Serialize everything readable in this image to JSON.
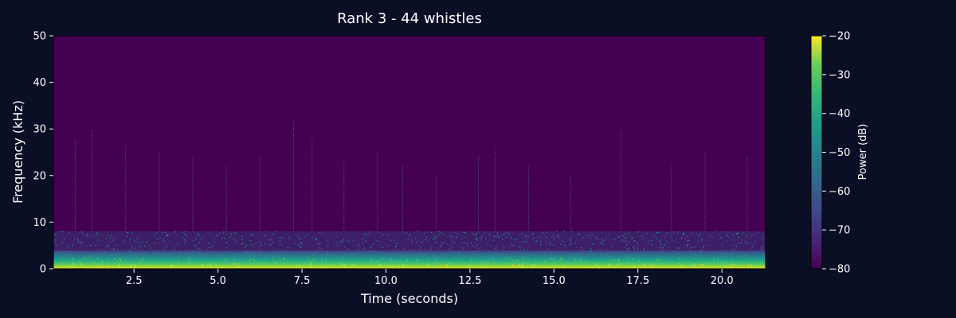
{
  "chart_data": {
    "type": "heatmap",
    "title": "Rank 3 - 44 whistles",
    "xlabel": "Time (seconds)",
    "ylabel": "Frequency (kHz)",
    "xlim": [
      0.1,
      21.3
    ],
    "ylim": [
      0,
      50
    ],
    "x_ticks": [
      2.5,
      5.0,
      7.5,
      10.0,
      12.5,
      15.0,
      17.5,
      20.0
    ],
    "x_tick_labels": [
      "2.5",
      "5.0",
      "7.5",
      "10.0",
      "12.5",
      "15.0",
      "17.5",
      "20.0"
    ],
    "y_ticks": [
      0,
      10,
      20,
      30,
      40,
      50
    ],
    "y_tick_labels": [
      "0",
      "10",
      "20",
      "30",
      "40",
      "50"
    ],
    "colorbar": {
      "label": "Power (dB)",
      "range": [
        -80,
        -20
      ],
      "colormap": "viridis",
      "ticks": [
        -20,
        -30,
        -40,
        -50,
        -60,
        -70,
        -80
      ],
      "tick_labels": [
        "−20",
        "−30",
        "−40",
        "−50",
        "−60",
        "−70",
        "−80"
      ]
    },
    "description_of_values": {
      "background_power_db": -80,
      "high_power_band_khz": [
        0,
        4
      ],
      "high_power_band_power_db": -22,
      "mid_band_khz": [
        4,
        8
      ],
      "mid_band_power_db": -65
    },
    "transients": [
      {
        "time": 0.75,
        "max_khz": 28
      },
      {
        "time": 1.25,
        "max_khz": 30
      },
      {
        "time": 2.25,
        "max_khz": 27
      },
      {
        "time": 3.25,
        "max_khz": 25
      },
      {
        "time": 4.25,
        "max_khz": 24
      },
      {
        "time": 5.25,
        "max_khz": 22
      },
      {
        "time": 6.25,
        "max_khz": 24
      },
      {
        "time": 7.25,
        "max_khz": 32
      },
      {
        "time": 7.8,
        "max_khz": 28
      },
      {
        "time": 8.75,
        "max_khz": 23
      },
      {
        "time": 9.75,
        "max_khz": 25
      },
      {
        "time": 10.5,
        "max_khz": 22
      },
      {
        "time": 11.5,
        "max_khz": 20
      },
      {
        "time": 12.75,
        "max_khz": 24
      },
      {
        "time": 13.25,
        "max_khz": 26
      },
      {
        "time": 14.25,
        "max_khz": 22
      },
      {
        "time": 15.5,
        "max_khz": 20
      },
      {
        "time": 17.0,
        "max_khz": 30
      },
      {
        "time": 18.5,
        "max_khz": 22
      },
      {
        "time": 19.5,
        "max_khz": 25
      },
      {
        "time": 20.75,
        "max_khz": 24
      }
    ]
  }
}
